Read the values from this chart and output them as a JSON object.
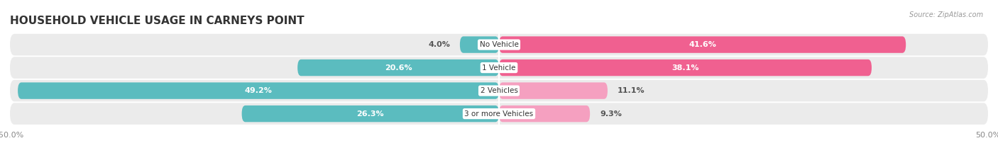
{
  "title": "HOUSEHOLD VEHICLE USAGE IN CARNEYS POINT",
  "source": "Source: ZipAtlas.com",
  "categories": [
    "No Vehicle",
    "1 Vehicle",
    "2 Vehicles",
    "3 or more Vehicles"
  ],
  "owner_values": [
    4.0,
    20.6,
    49.2,
    26.3
  ],
  "renter_values": [
    41.6,
    38.1,
    11.1,
    9.3
  ],
  "owner_color": "#5bbcbf",
  "renter_color_strong": "#f06090",
  "renter_color_light": "#f5a0c0",
  "axis_min": -50.0,
  "axis_max": 50.0,
  "background_color": "#ffffff",
  "bar_bg_color": "#ebebeb",
  "bar_height": 0.72,
  "title_fontsize": 11,
  "label_fontsize": 8,
  "category_fontsize": 7.5,
  "source_fontsize": 7
}
